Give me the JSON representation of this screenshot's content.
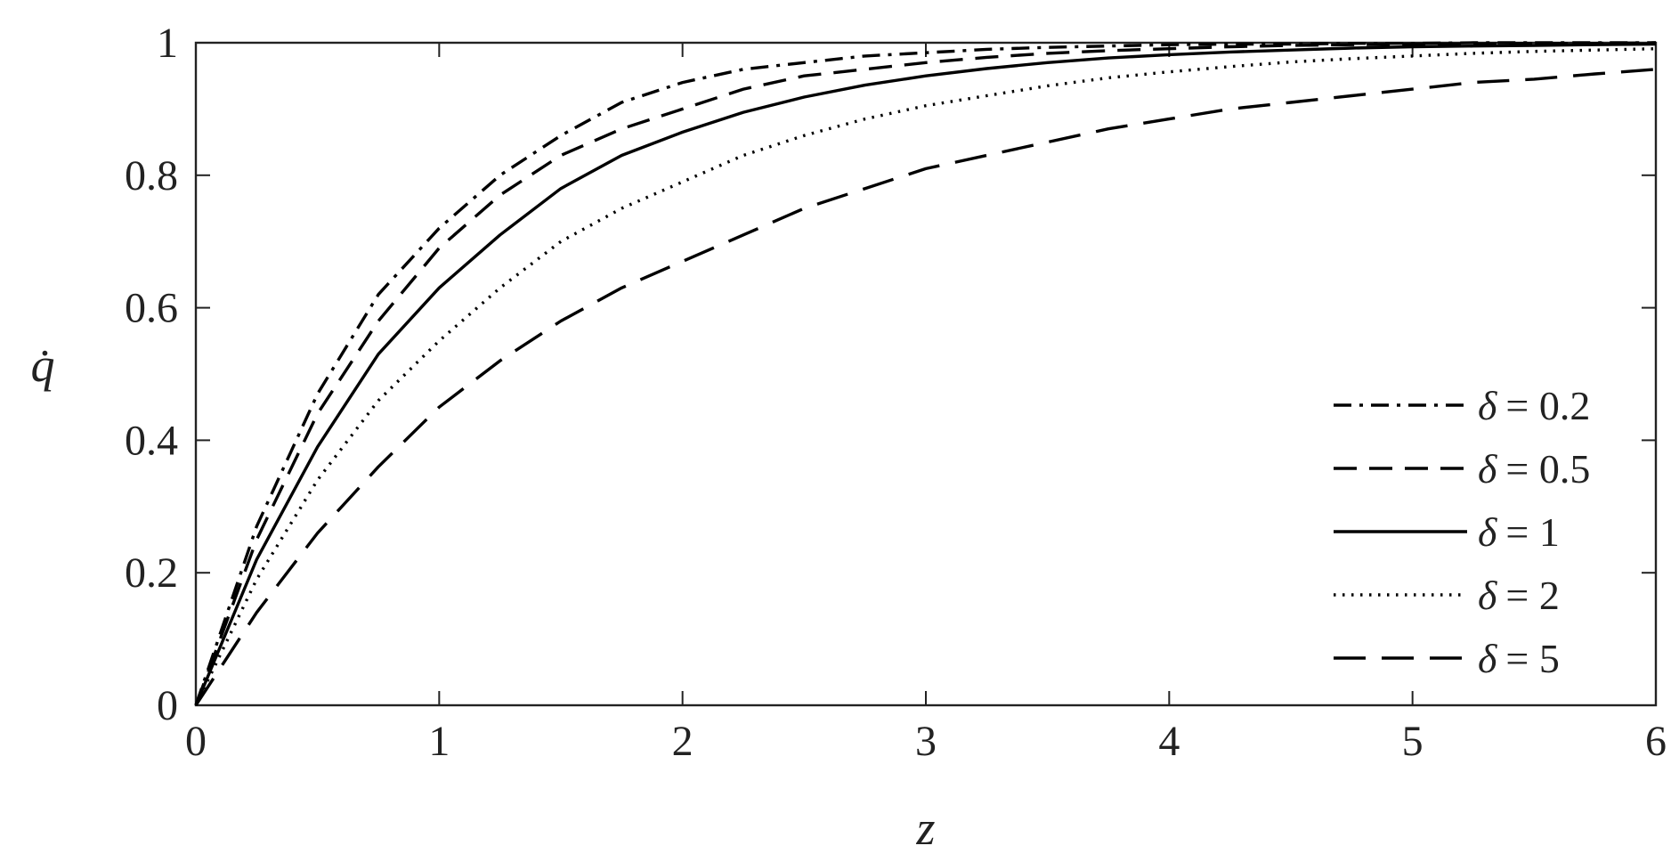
{
  "chart_data": {
    "type": "line",
    "xlabel": "z",
    "ylabel": "q̇",
    "xlim": [
      0,
      6
    ],
    "ylim": [
      0,
      1
    ],
    "x_ticks": [
      "0",
      "1",
      "2",
      "3",
      "4",
      "5",
      "6"
    ],
    "y_ticks": [
      "0",
      "0.2",
      "0.4",
      "0.6",
      "0.8",
      "1"
    ],
    "grid": false,
    "legend_position": "lower-right",
    "line_color": "#000000",
    "x": [
      0,
      0.25,
      0.5,
      0.75,
      1,
      1.25,
      1.5,
      1.75,
      2,
      2.25,
      2.5,
      2.75,
      3,
      3.25,
      3.5,
      3.75,
      4,
      4.25,
      4.5,
      4.75,
      5,
      5.25,
      5.5,
      5.75,
      6
    ],
    "series": [
      {
        "name": "δ = 0.2",
        "legend_symbol": "δ",
        "legend_value": "= 0.2",
        "line_style": "dashdot",
        "values": [
          0,
          0.27,
          0.47,
          0.62,
          0.72,
          0.8,
          0.86,
          0.91,
          0.94,
          0.96,
          0.97,
          0.98,
          0.985,
          0.99,
          0.993,
          0.995,
          0.997,
          0.998,
          0.998,
          0.999,
          0.999,
          1.0,
          1.0,
          1.0,
          1.0
        ]
      },
      {
        "name": "δ = 0.5",
        "legend_symbol": "δ",
        "legend_value": "= 0.5",
        "line_style": "dashed",
        "values": [
          0,
          0.25,
          0.44,
          0.58,
          0.69,
          0.77,
          0.83,
          0.87,
          0.9,
          0.93,
          0.95,
          0.96,
          0.97,
          0.978,
          0.984,
          0.988,
          0.991,
          0.994,
          0.996,
          0.997,
          0.998,
          0.998,
          0.999,
          0.999,
          1.0
        ]
      },
      {
        "name": "δ = 1",
        "legend_symbol": "δ",
        "legend_value": "= 1",
        "line_style": "solid",
        "values": [
          0,
          0.22,
          0.39,
          0.53,
          0.63,
          0.71,
          0.78,
          0.83,
          0.865,
          0.895,
          0.918,
          0.936,
          0.95,
          0.961,
          0.97,
          0.977,
          0.982,
          0.986,
          0.989,
          0.992,
          0.994,
          0.995,
          0.996,
          0.997,
          0.998
        ]
      },
      {
        "name": "δ = 2",
        "legend_symbol": "δ",
        "legend_value": "= 2",
        "line_style": "dotted",
        "values": [
          0,
          0.19,
          0.34,
          0.46,
          0.55,
          0.63,
          0.7,
          0.75,
          0.79,
          0.83,
          0.86,
          0.885,
          0.905,
          0.92,
          0.935,
          0.947,
          0.956,
          0.964,
          0.971,
          0.976,
          0.98,
          0.984,
          0.987,
          0.989,
          0.991
        ]
      },
      {
        "name": "δ = 5",
        "legend_symbol": "δ",
        "legend_value": "= 5",
        "line_style": "longdash",
        "values": [
          0,
          0.14,
          0.26,
          0.36,
          0.45,
          0.52,
          0.58,
          0.63,
          0.67,
          0.71,
          0.75,
          0.78,
          0.81,
          0.83,
          0.85,
          0.87,
          0.885,
          0.9,
          0.91,
          0.92,
          0.93,
          0.94,
          0.945,
          0.953,
          0.96
        ]
      }
    ]
  }
}
